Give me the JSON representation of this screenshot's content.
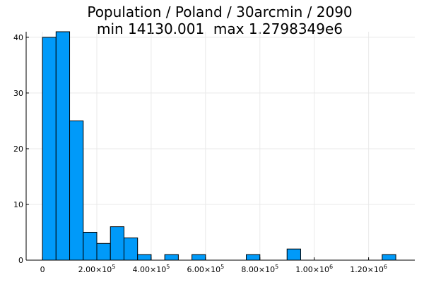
{
  "chart_data": {
    "type": "bar",
    "title": "Population / Poland / 30arcmin / 2090",
    "subtitle": "min 14130.001  max 1.2798349e6",
    "xlabel": "",
    "ylabel": "",
    "bar_color": "#009af9",
    "bin_width": 50000,
    "xlim": [
      -60000,
      1370000
    ],
    "ylim": [
      0,
      41
    ],
    "grid": true,
    "legend": "none",
    "bins": [
      {
        "x0": 0,
        "x1": 50000,
        "count": 40
      },
      {
        "x0": 50000,
        "x1": 100000,
        "count": 41
      },
      {
        "x0": 100000,
        "x1": 150000,
        "count": 25
      },
      {
        "x0": 150000,
        "x1": 200000,
        "count": 5
      },
      {
        "x0": 200000,
        "x1": 250000,
        "count": 3
      },
      {
        "x0": 250000,
        "x1": 300000,
        "count": 6
      },
      {
        "x0": 300000,
        "x1": 350000,
        "count": 4
      },
      {
        "x0": 350000,
        "x1": 400000,
        "count": 1
      },
      {
        "x0": 400000,
        "x1": 450000,
        "count": 0
      },
      {
        "x0": 450000,
        "x1": 500000,
        "count": 1
      },
      {
        "x0": 500000,
        "x1": 550000,
        "count": 0
      },
      {
        "x0": 550000,
        "x1": 600000,
        "count": 1
      },
      {
        "x0": 600000,
        "x1": 650000,
        "count": 0
      },
      {
        "x0": 650000,
        "x1": 700000,
        "count": 0
      },
      {
        "x0": 700000,
        "x1": 750000,
        "count": 0
      },
      {
        "x0": 750000,
        "x1": 800000,
        "count": 1
      },
      {
        "x0": 800000,
        "x1": 850000,
        "count": 0
      },
      {
        "x0": 850000,
        "x1": 900000,
        "count": 0
      },
      {
        "x0": 900000,
        "x1": 950000,
        "count": 2
      },
      {
        "x0": 950000,
        "x1": 1000000,
        "count": 0
      },
      {
        "x0": 1000000,
        "x1": 1050000,
        "count": 0
      },
      {
        "x0": 1050000,
        "x1": 1100000,
        "count": 0
      },
      {
        "x0": 1100000,
        "x1": 1150000,
        "count": 0
      },
      {
        "x0": 1150000,
        "x1": 1200000,
        "count": 0
      },
      {
        "x0": 1200000,
        "x1": 1250000,
        "count": 0
      },
      {
        "x0": 1250000,
        "x1": 1300000,
        "count": 1
      }
    ],
    "y_ticks": [
      0,
      10,
      20,
      30,
      40
    ],
    "x_ticks": [
      {
        "value": 0,
        "mantissa": "0",
        "exponent": ""
      },
      {
        "value": 200000,
        "mantissa": "2.00×10",
        "exponent": "5"
      },
      {
        "value": 400000,
        "mantissa": "4.00×10",
        "exponent": "5"
      },
      {
        "value": 600000,
        "mantissa": "6.00×10",
        "exponent": "5"
      },
      {
        "value": 800000,
        "mantissa": "8.00×10",
        "exponent": "5"
      },
      {
        "value": 1000000,
        "mantissa": "1.00×10",
        "exponent": "6"
      },
      {
        "value": 1200000,
        "mantissa": "1.20×10",
        "exponent": "6"
      }
    ]
  }
}
